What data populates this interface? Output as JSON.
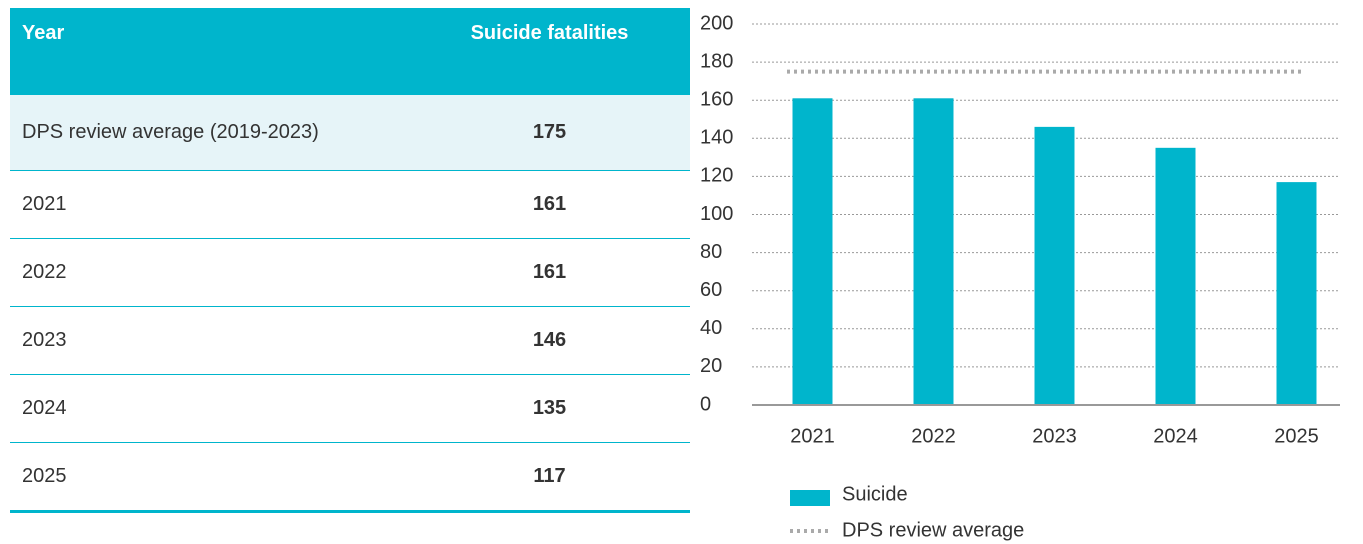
{
  "table": {
    "header": [
      "Year",
      "Suicide fatalities"
    ],
    "rows": [
      [
        "DPS review average (2019-2023)",
        175
      ],
      [
        "2021",
        161
      ],
      [
        "2022",
        161
      ],
      [
        "2023",
        146
      ],
      [
        "2024",
        135
      ],
      [
        "2025",
        117
      ]
    ]
  },
  "chart_data": {
    "type": "bar",
    "categories": [
      "2021",
      "2022",
      "2023",
      "2024",
      "2025"
    ],
    "series": [
      {
        "name": "Suicide",
        "color": "#00b5cc",
        "values": [
          161,
          161,
          146,
          135,
          117
        ]
      }
    ],
    "reference": {
      "name": "DPS review average",
      "value": 175,
      "color": "#aaaaaa"
    },
    "ylim": [
      0,
      200
    ],
    "yticks": [
      0,
      20,
      40,
      60,
      80,
      100,
      120,
      140,
      160,
      180,
      200
    ],
    "grid": true
  }
}
